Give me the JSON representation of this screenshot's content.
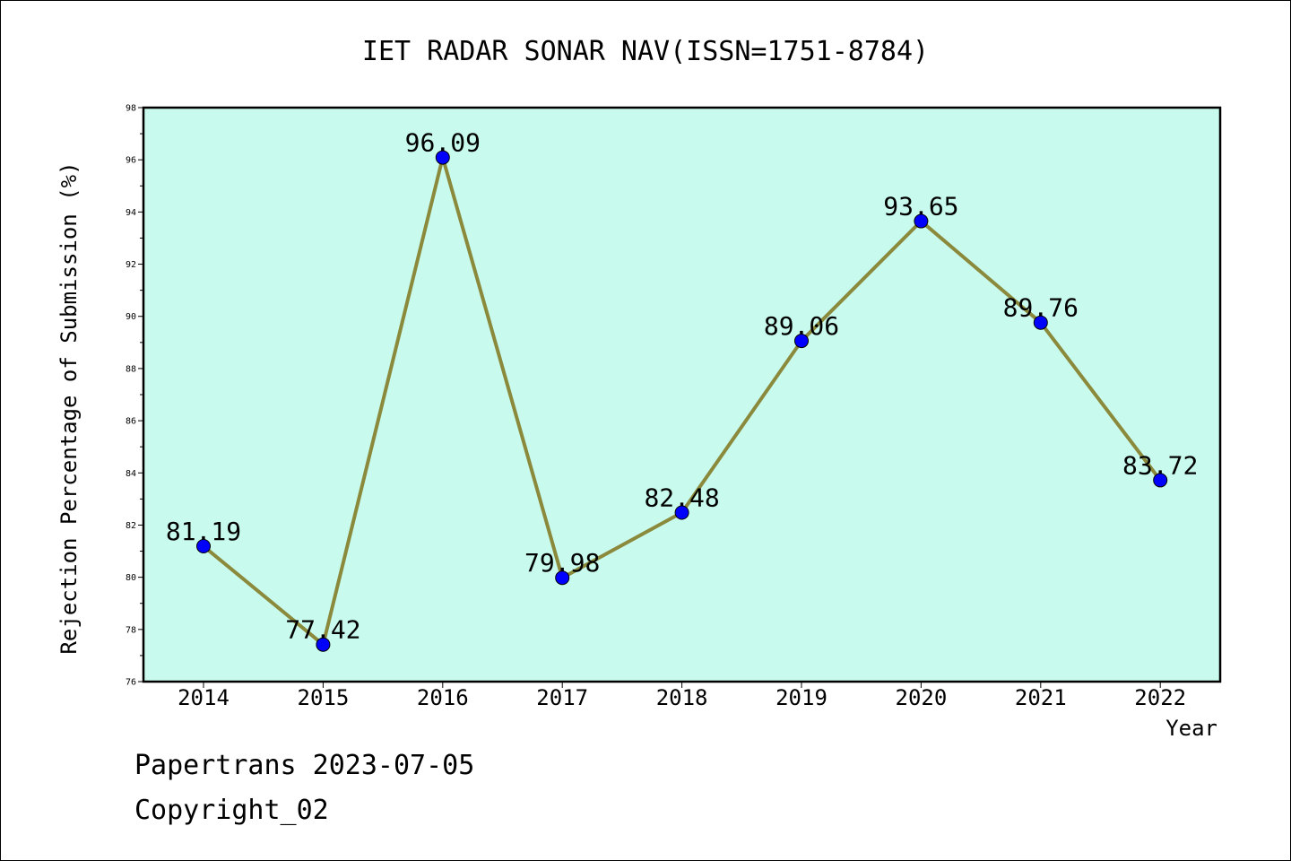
{
  "chart_data": {
    "type": "line",
    "title": "IET RADAR SONAR NAV(ISSN=1751-8784)",
    "xlabel": "Year",
    "ylabel": "Rejection Percentage of Submission (%)",
    "categories": [
      "2014",
      "2015",
      "2016",
      "2017",
      "2018",
      "2019",
      "2020",
      "2021",
      "2022"
    ],
    "values": [
      81.19,
      77.42,
      96.09,
      79.98,
      82.48,
      89.06,
      93.65,
      89.76,
      83.72
    ],
    "data_labels": [
      "81.19",
      "77.42",
      "96.09",
      "79.98",
      "82.48",
      "89.06",
      "93.65",
      "89.76",
      "83.72"
    ],
    "ylim": [
      76,
      98
    ],
    "yticks": [
      "76",
      "78",
      "80",
      "82",
      "84",
      "86",
      "88",
      "90",
      "92",
      "94",
      "96",
      "98"
    ],
    "grid": false,
    "colors": {
      "line": "#8b8a3c",
      "marker": "#0000ff",
      "plot_bg": "#c8fbee"
    }
  },
  "footer": {
    "line1": "Papertrans 2023-07-05",
    "line2": "Copyright_02"
  }
}
